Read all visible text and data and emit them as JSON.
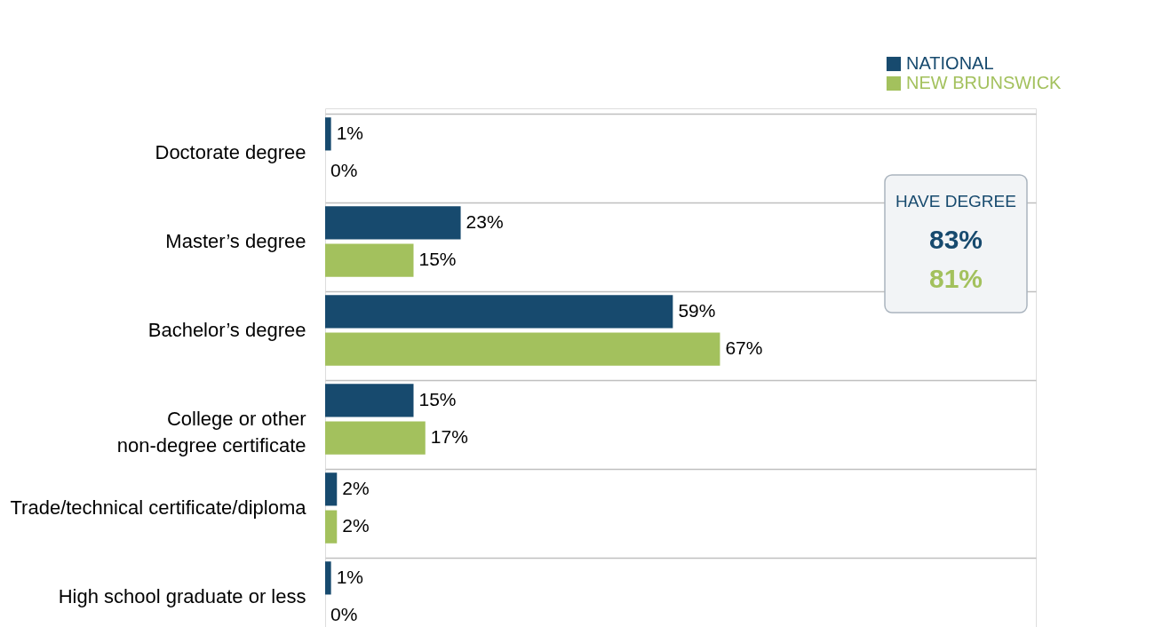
{
  "chart_data": {
    "type": "bar",
    "orientation": "horizontal",
    "categories": [
      "Doctorate degree",
      "Master’s degree",
      "Bachelor’s degree",
      "College or other\nnon-degree certificate",
      "Trade/technical certificate/diploma",
      "High school graduate or less"
    ],
    "series": [
      {
        "name": "NATIONAL",
        "color": "#174a6e",
        "values": [
          1,
          23,
          59,
          15,
          2,
          1
        ],
        "value_labels": [
          "1%",
          "23%",
          "59%",
          "15%",
          "2%",
          "1%"
        ]
      },
      {
        "name": "NEW BRUNSWICK",
        "color": "#a3c15d",
        "values": [
          0,
          15,
          67,
          17,
          2,
          0
        ],
        "value_labels": [
          "0%",
          "15%",
          "67%",
          "17%",
          "2%",
          "0%"
        ]
      }
    ],
    "annotations": [
      "HAVE DEGREE",
      "83%",
      "81%"
    ],
    "tick_labels": "y",
    "grid": "y",
    "legend": "top right"
  }
}
